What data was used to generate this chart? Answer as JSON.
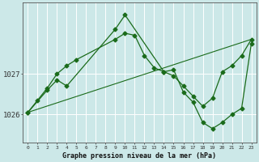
{
  "title": "Graphe pression niveau de la mer (hPa)",
  "bg_color": "#cce8e8",
  "line_color": "#1a6b1a",
  "grid_color": "#ffffff",
  "xlim": [
    -0.5,
    23.5
  ],
  "ylim": [
    1025.3,
    1028.75
  ],
  "yticks": [
    1026,
    1027
  ],
  "xticks": [
    0,
    1,
    2,
    3,
    4,
    5,
    6,
    7,
    8,
    9,
    10,
    11,
    12,
    13,
    14,
    15,
    16,
    17,
    18,
    19,
    20,
    21,
    22,
    23
  ],
  "line_diagonal": {
    "x": [
      0,
      23
    ],
    "y": [
      1026.05,
      1027.85
    ]
  },
  "line_smooth": {
    "x": [
      0,
      1,
      2,
      3,
      4,
      5,
      9,
      10,
      11,
      12,
      13,
      14,
      15,
      16,
      17,
      18,
      19,
      20,
      21,
      22,
      23
    ],
    "y": [
      1026.05,
      1026.35,
      1026.65,
      1027.0,
      1027.2,
      1027.35,
      1027.85,
      1028.0,
      1027.95,
      1027.45,
      1027.15,
      1027.05,
      1026.95,
      1026.7,
      1026.45,
      1026.2,
      1026.4,
      1027.05,
      1027.2,
      1027.45,
      1027.85
    ]
  },
  "line_spiky": {
    "x": [
      0,
      2,
      3,
      4,
      9,
      10,
      14,
      15,
      16,
      17,
      18,
      19,
      20,
      21,
      22,
      23
    ],
    "y": [
      1026.05,
      1026.6,
      1026.85,
      1026.7,
      1028.1,
      1028.45,
      1027.05,
      1027.1,
      1026.55,
      1026.3,
      1025.8,
      1025.65,
      1025.8,
      1026.0,
      1026.15,
      1027.75
    ]
  }
}
